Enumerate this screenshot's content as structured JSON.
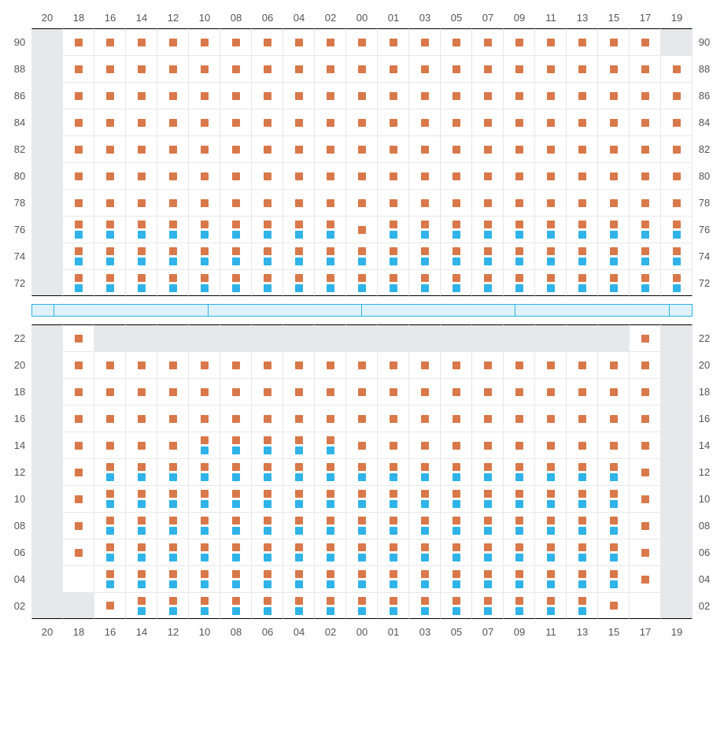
{
  "colors": {
    "orange": "#d9784a",
    "blue": "#2fb3e8",
    "unavailable": "#e6e9ec",
    "aisleFill": "#dff2fc",
    "aisleBorder": "#31b0e8"
  },
  "columns": [
    "20",
    "18",
    "16",
    "14",
    "12",
    "10",
    "08",
    "06",
    "04",
    "02",
    "00",
    "01",
    "03",
    "05",
    "07",
    "09",
    "11",
    "13",
    "15",
    "17",
    "19"
  ],
  "upperRows": [
    "90",
    "88",
    "86",
    "84",
    "82",
    "80",
    "78",
    "76",
    "74",
    "72"
  ],
  "lowerRows": [
    "22",
    "20",
    "18",
    "16",
    "14",
    "12",
    "10",
    "08",
    "06",
    "04",
    "02"
  ],
  "upperGrid": {
    "unavailable": {
      "90": [
        "20",
        "19"
      ]
    },
    "orange": {
      "90": [
        "18",
        "16",
        "14",
        "12",
        "10",
        "08",
        "06",
        "04",
        "02",
        "00",
        "01",
        "03",
        "05",
        "07",
        "09",
        "11",
        "13",
        "15",
        "17"
      ],
      "88": [
        "18",
        "16",
        "14",
        "12",
        "10",
        "08",
        "06",
        "04",
        "02",
        "00",
        "01",
        "03",
        "05",
        "07",
        "09",
        "11",
        "13",
        "15",
        "17",
        "19"
      ],
      "86": [
        "18",
        "16",
        "14",
        "12",
        "10",
        "08",
        "06",
        "04",
        "02",
        "00",
        "01",
        "03",
        "05",
        "07",
        "09",
        "11",
        "13",
        "15",
        "17",
        "19"
      ],
      "84": [
        "18",
        "16",
        "14",
        "12",
        "10",
        "08",
        "06",
        "04",
        "02",
        "00",
        "01",
        "03",
        "05",
        "07",
        "09",
        "11",
        "13",
        "15",
        "17",
        "19"
      ],
      "82": [
        "18",
        "16",
        "14",
        "12",
        "10",
        "08",
        "06",
        "04",
        "02",
        "00",
        "01",
        "03",
        "05",
        "07",
        "09",
        "11",
        "13",
        "15",
        "17",
        "19"
      ],
      "80": [
        "18",
        "16",
        "14",
        "12",
        "10",
        "08",
        "06",
        "04",
        "02",
        "00",
        "01",
        "03",
        "05",
        "07",
        "09",
        "11",
        "13",
        "15",
        "17",
        "19"
      ],
      "78": [
        "18",
        "16",
        "14",
        "12",
        "10",
        "08",
        "06",
        "04",
        "02",
        "00",
        "01",
        "03",
        "05",
        "07",
        "09",
        "11",
        "13",
        "15",
        "17",
        "19"
      ],
      "76": [
        "18",
        "16",
        "14",
        "12",
        "10",
        "08",
        "06",
        "04",
        "02",
        "00",
        "01",
        "03",
        "05",
        "07",
        "09",
        "11",
        "13",
        "15",
        "17",
        "19"
      ],
      "74": [
        "18",
        "16",
        "14",
        "12",
        "10",
        "08",
        "06",
        "04",
        "02",
        "00",
        "01",
        "03",
        "05",
        "07",
        "09",
        "11",
        "13",
        "15",
        "17",
        "19"
      ],
      "72": [
        "18",
        "16",
        "14",
        "12",
        "10",
        "08",
        "06",
        "04",
        "02",
        "00",
        "01",
        "03",
        "05",
        "07",
        "09",
        "11",
        "13",
        "15",
        "17",
        "19"
      ]
    },
    "blue": {
      "76": [
        "18",
        "16",
        "14",
        "12",
        "10",
        "08",
        "06",
        "04",
        "02",
        "01",
        "03",
        "05",
        "07",
        "09",
        "11",
        "13",
        "15",
        "17",
        "19"
      ],
      "74": [
        "18",
        "16",
        "14",
        "12",
        "10",
        "08",
        "06",
        "04",
        "02",
        "00",
        "01",
        "03",
        "05",
        "07",
        "09",
        "11",
        "13",
        "15",
        "17",
        "19"
      ],
      "72": [
        "18",
        "16",
        "14",
        "12",
        "10",
        "08",
        "06",
        "04",
        "02",
        "00",
        "01",
        "03",
        "05",
        "07",
        "09",
        "11",
        "13",
        "15",
        "17",
        "19"
      ]
    }
  },
  "lowerGrid": {
    "unavailable": {
      "22": [
        "20",
        "16",
        "14",
        "12",
        "10",
        "08",
        "06",
        "04",
        "02",
        "00",
        "01",
        "03",
        "05",
        "07",
        "09",
        "11",
        "13",
        "15",
        "19"
      ],
      "02": [
        "20",
        "18"
      ]
    },
    "orange": {
      "22": [
        "18",
        "17"
      ],
      "20": [
        "18",
        "16",
        "14",
        "12",
        "10",
        "08",
        "06",
        "04",
        "02",
        "00",
        "01",
        "03",
        "05",
        "07",
        "09",
        "11",
        "13",
        "15",
        "17"
      ],
      "18": [
        "18",
        "16",
        "14",
        "12",
        "10",
        "08",
        "06",
        "04",
        "02",
        "00",
        "01",
        "03",
        "05",
        "07",
        "09",
        "11",
        "13",
        "15",
        "17"
      ],
      "16": [
        "18",
        "16",
        "14",
        "12",
        "10",
        "08",
        "06",
        "04",
        "02",
        "00",
        "01",
        "03",
        "05",
        "07",
        "09",
        "11",
        "13",
        "15",
        "17"
      ],
      "14": [
        "18",
        "16",
        "14",
        "12",
        "10",
        "08",
        "06",
        "04",
        "02",
        "00",
        "01",
        "03",
        "05",
        "07",
        "09",
        "11",
        "13",
        "15",
        "17"
      ],
      "12": [
        "18",
        "16",
        "14",
        "12",
        "10",
        "08",
        "06",
        "04",
        "02",
        "00",
        "01",
        "03",
        "05",
        "07",
        "09",
        "11",
        "13",
        "15",
        "17"
      ],
      "10": [
        "18",
        "16",
        "14",
        "12",
        "10",
        "08",
        "06",
        "04",
        "02",
        "00",
        "01",
        "03",
        "05",
        "07",
        "09",
        "11",
        "13",
        "15",
        "17"
      ],
      "08": [
        "18",
        "16",
        "14",
        "12",
        "10",
        "08",
        "06",
        "04",
        "02",
        "00",
        "01",
        "03",
        "05",
        "07",
        "09",
        "11",
        "13",
        "15",
        "17"
      ],
      "06": [
        "18",
        "16",
        "14",
        "12",
        "10",
        "08",
        "06",
        "04",
        "02",
        "00",
        "01",
        "03",
        "05",
        "07",
        "09",
        "11",
        "13",
        "15",
        "17"
      ],
      "04": [
        "16",
        "14",
        "12",
        "10",
        "08",
        "06",
        "04",
        "02",
        "00",
        "01",
        "03",
        "05",
        "07",
        "09",
        "11",
        "13",
        "15",
        "17"
      ],
      "02": [
        "16",
        "14",
        "12",
        "10",
        "08",
        "06",
        "04",
        "02",
        "00",
        "01",
        "03",
        "05",
        "07",
        "09",
        "11",
        "13",
        "15"
      ]
    },
    "blue": {
      "14": [
        "10",
        "08",
        "06",
        "04",
        "02"
      ],
      "12": [
        "16",
        "14",
        "12",
        "10",
        "08",
        "06",
        "04",
        "02",
        "00",
        "01",
        "03",
        "05",
        "07",
        "09",
        "11",
        "13",
        "15"
      ],
      "10": [
        "16",
        "14",
        "12",
        "10",
        "08",
        "06",
        "04",
        "02",
        "00",
        "01",
        "03",
        "05",
        "07",
        "09",
        "11",
        "13",
        "15"
      ],
      "08": [
        "16",
        "14",
        "12",
        "10",
        "08",
        "06",
        "04",
        "02",
        "00",
        "01",
        "03",
        "05",
        "07",
        "09",
        "11",
        "13",
        "15"
      ],
      "06": [
        "16",
        "14",
        "12",
        "10",
        "08",
        "06",
        "04",
        "02",
        "00",
        "01",
        "03",
        "05",
        "07",
        "09",
        "11",
        "13",
        "15"
      ],
      "04": [
        "16",
        "14",
        "12",
        "10",
        "08",
        "06",
        "04",
        "02",
        "00",
        "01",
        "03",
        "05",
        "07",
        "09",
        "11",
        "13",
        "15"
      ],
      "02": [
        "14",
        "12",
        "10",
        "08",
        "06",
        "04",
        "02",
        "00",
        "01",
        "03",
        "05",
        "07",
        "09",
        "11",
        "13"
      ]
    }
  },
  "aisleSegments": [
    30,
    200,
    200,
    200,
    200,
    30
  ]
}
